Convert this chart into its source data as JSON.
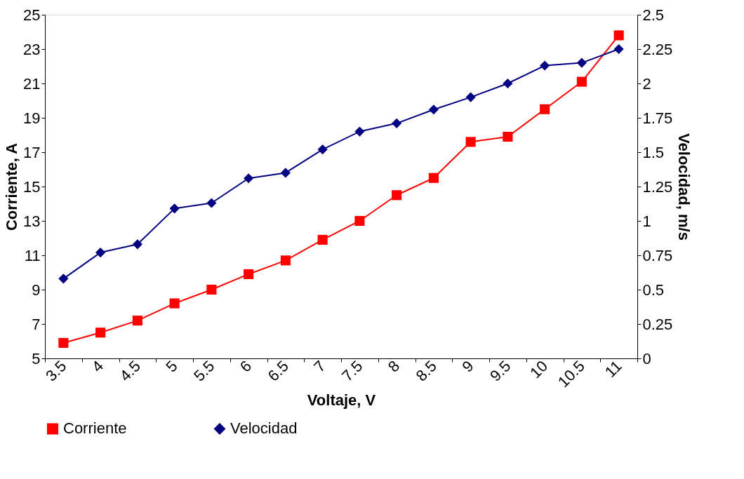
{
  "chart_data": {
    "type": "line",
    "xlabel": "Voltaje, V",
    "ylabel": "Corriente, A",
    "y2label": "Velocidad, m/s",
    "categories": [
      "3.5",
      "4",
      "4.5",
      "5",
      "5.5",
      "6",
      "6.5",
      "7",
      "7.5",
      "8",
      "8.5",
      "9",
      "9.5",
      "10",
      "10.5",
      "11"
    ],
    "series": [
      {
        "name": "Corriente",
        "color": "#ff0000",
        "marker": "square",
        "values": [
          5.9,
          6.5,
          7.2,
          8.2,
          9.0,
          9.9,
          10.7,
          11.9,
          13.0,
          14.5,
          15.5,
          17.6,
          17.9,
          19.5,
          21.1,
          23.8
        ]
      },
      {
        "name": "Velocidad",
        "color": "#000080",
        "marker": "diamond",
        "axis": "y2",
        "values": [
          0.58,
          0.77,
          0.83,
          1.09,
          1.13,
          1.31,
          1.35,
          1.52,
          1.65,
          1.71,
          1.81,
          1.9,
          2.0,
          2.13,
          2.15,
          2.25
        ]
      }
    ],
    "ylim": [
      5,
      25
    ],
    "yticks": [
      5,
      7,
      9,
      11,
      13,
      15,
      17,
      19,
      21,
      23,
      25
    ],
    "y2lim": [
      0,
      2.5
    ],
    "y2ticks": [
      0,
      0.25,
      0.5,
      0.75,
      1,
      1.25,
      1.5,
      1.75,
      2,
      2.25,
      2.5
    ],
    "grid": false,
    "legend": "bottom",
    "line_style": "solid"
  }
}
